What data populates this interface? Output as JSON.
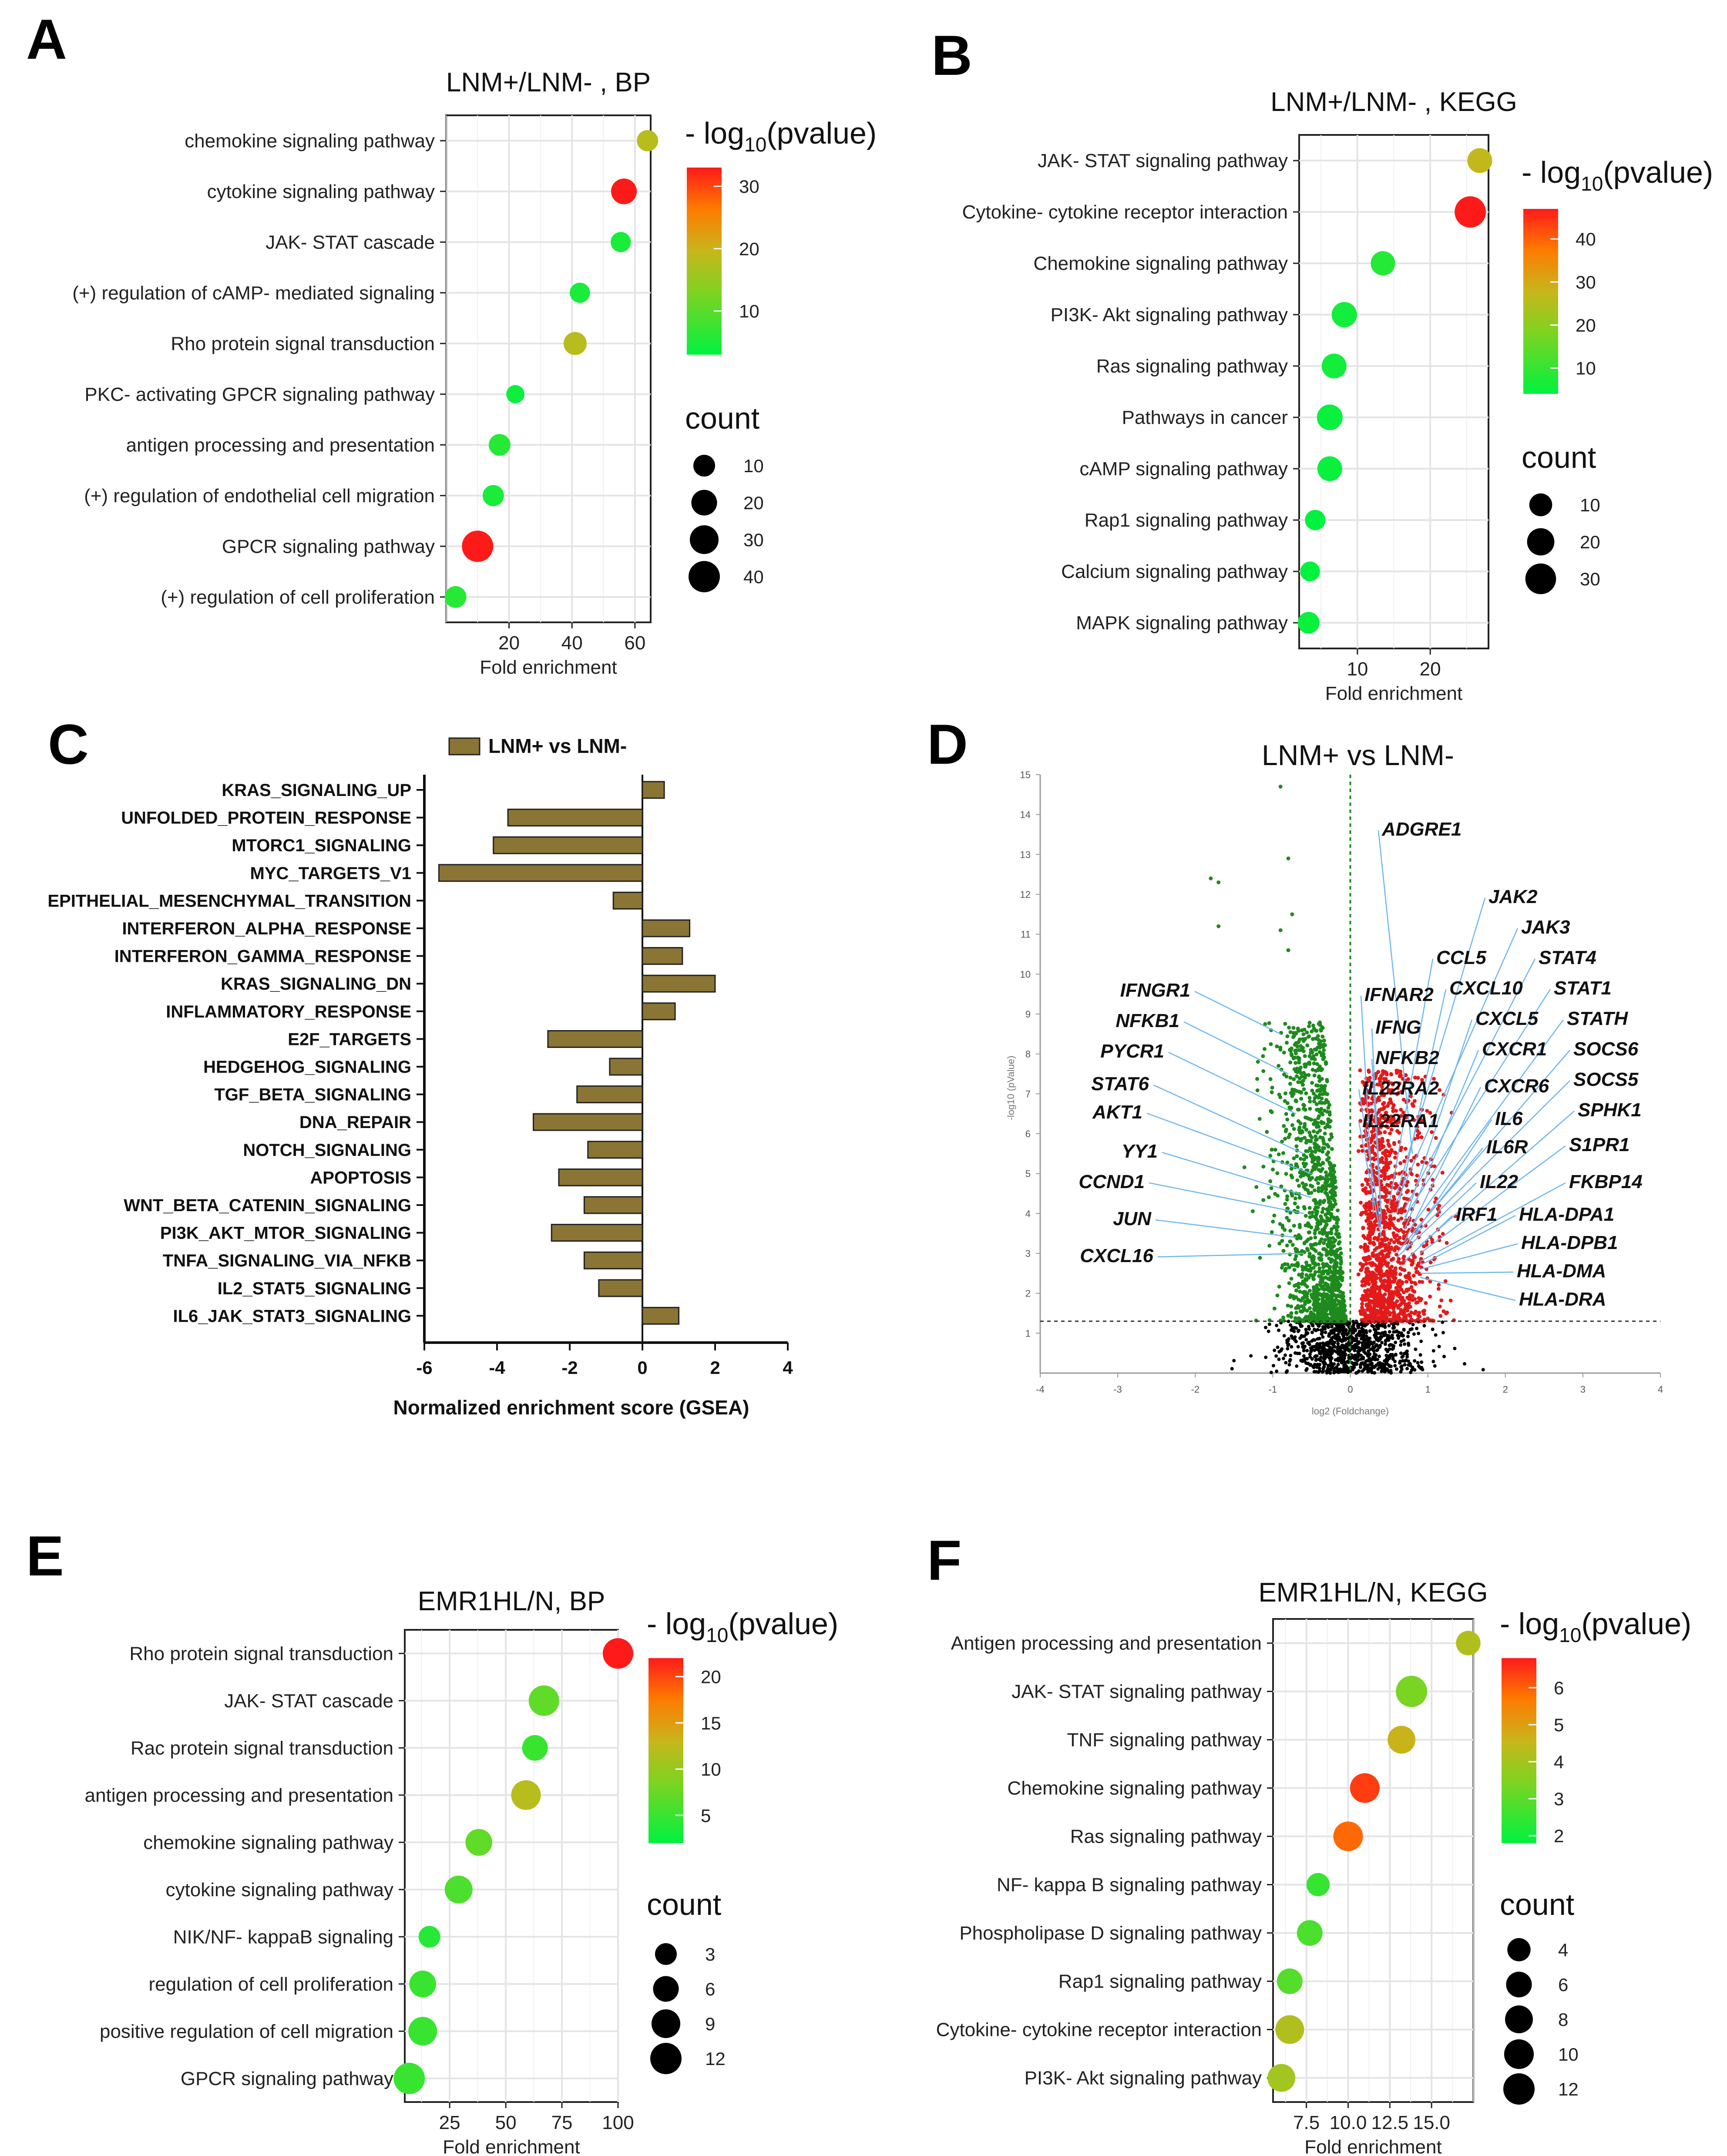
{
  "chart_data": [
    {
      "id": "A",
      "type": "scatter",
      "panel_label": "A",
      "title": "LNM+/LNM- , BP",
      "xlabel": "Fold enrichment",
      "ylabel": "",
      "xlim": [
        0,
        65
      ],
      "xticks": [
        20,
        40,
        60
      ],
      "grid": true,
      "terms": [
        "chemokine signaling pathway",
        "cytokine signaling pathway",
        "JAK- STAT cascade",
        "(+) regulation of cAMP- mediated signaling",
        "Rho protein signal transduction",
        "PKC- activating GPCR signaling pathway",
        "antigen processing and presentation",
        "(+) regulation of endothelial cell migration",
        "GPCR signaling pathway",
        "(+) regulation of cell proliferation"
      ],
      "fold_enrichment": [
        64,
        56.5,
        55.5,
        42.5,
        41,
        22,
        17,
        15,
        10,
        3
      ],
      "neg_log10_pvalue": [
        18,
        33,
        5,
        5,
        18,
        4,
        6,
        5,
        33,
        6
      ],
      "count": [
        9,
        20,
        7,
        7,
        13,
        4,
        10,
        9,
        40,
        10
      ],
      "color_legend": {
        "title_prefix": "- log",
        "title_sub": "10",
        "title_suffix": "(pvalue)",
        "ticks": [
          10,
          20,
          30
        ],
        "min": 3,
        "max": 33
      },
      "size_legend": {
        "title": "count",
        "ticks": [
          10,
          20,
          30,
          40
        ],
        "max_count": 40
      }
    },
    {
      "id": "B",
      "type": "scatter",
      "panel_label": "B",
      "title": "LNM+/LNM- , KEGG",
      "xlabel": "Fold enrichment",
      "ylabel": "",
      "xlim": [
        2,
        28
      ],
      "xticks": [
        10,
        20
      ],
      "grid": true,
      "terms": [
        "JAK- STAT signaling pathway",
        "Cytokine- cytokine receptor interaction",
        "Chemokine signaling pathway",
        "PI3K- Akt signaling pathway",
        "Ras signaling pathway",
        "Pathways in cancer",
        "cAMP signaling pathway",
        "Rap1 signaling pathway",
        "Calcium signaling pathway",
        "MAPK signaling pathway"
      ],
      "fold_enrichment": [
        26.8,
        25.5,
        13.5,
        8.2,
        6.8,
        6.2,
        6.2,
        4.2,
        3.5,
        3.3
      ],
      "neg_log10_pvalue": [
        27,
        47,
        8,
        6,
        6,
        5,
        5,
        4,
        4,
        5
      ],
      "count": [
        14,
        32,
        13,
        15,
        14,
        16,
        14,
        6,
        5,
        8
      ],
      "color_legend": {
        "title_prefix": "- log",
        "title_sub": "10",
        "title_suffix": "(pvalue)",
        "ticks": [
          10,
          20,
          30,
          40
        ],
        "min": 4,
        "max": 47
      },
      "size_legend": {
        "title": "count",
        "ticks": [
          10,
          20,
          30
        ],
        "max_count": 32
      }
    },
    {
      "id": "C",
      "type": "bar",
      "orientation": "horizontal",
      "panel_label": "C",
      "title": "",
      "legend": "LNM+ vs LNM-",
      "legend_color": "#8b7534",
      "xlabel": "Normalized enrichment score (GSEA)",
      "xlim": [
        -6,
        4
      ],
      "xticks": [
        -6,
        -4,
        -2,
        0,
        2,
        4
      ],
      "categories": [
        "KRAS_SIGNALING_UP",
        "UNFOLDED_PROTEIN_RESPONSE",
        "MTORC1_SIGNALING",
        "MYC_TARGETS_V1",
        "EPITHELIAL_MESENCHYMAL_TRANSITION",
        "INTERFERON_ALPHA_RESPONSE",
        "INTERFERON_GAMMA_RESPONSE",
        "KRAS_SIGNALING_DN",
        "INFLAMMATORY_RESPONSE",
        "E2F_TARGETS",
        "HEDGEHOG_SIGNALING",
        "TGF_BETA_SIGNALING",
        "DNA_REPAIR",
        "NOTCH_SIGNALING",
        "APOPTOSIS",
        "WNT_BETA_CATENIN_SIGNALING",
        "PI3K_AKT_MTOR_SIGNALING",
        "TNFA_SIGNALING_VIA_NFKB",
        "IL2_STAT5_SIGNALING",
        "IL6_JAK_STAT3_SIGNALING"
      ],
      "values": [
        0.6,
        -3.7,
        -4.1,
        -5.6,
        -0.8,
        1.3,
        1.1,
        2.0,
        0.9,
        -2.6,
        -0.9,
        -1.8,
        -3.0,
        -1.5,
        -2.3,
        -1.6,
        -2.5,
        -1.6,
        -1.2,
        1.0
      ]
    },
    {
      "id": "D",
      "type": "scatter",
      "subtype": "volcano",
      "panel_label": "D",
      "title": "LNM+ vs LNM-",
      "xlabel": "log2 (Foldchange)",
      "ylabel": "-log10 (pValue)",
      "xlim": [
        -4,
        4
      ],
      "ylim": [
        0,
        15
      ],
      "xticks": [
        -4,
        -3,
        -2,
        -1,
        0,
        1,
        2,
        3,
        4
      ],
      "yticks": [
        1,
        2,
        3,
        4,
        5,
        6,
        7,
        8,
        9,
        10,
        11,
        12,
        13,
        14,
        15
      ],
      "pvalue_threshold_line": 1.3,
      "fc_threshold_line": 0,
      "colors": {
        "down": "#1e8a1e",
        "up": "#e31a1a",
        "ns": "#000000",
        "label_line": "#6bb5f0"
      },
      "labeled_genes_down": [
        {
          "gene": "IFNGR1",
          "x": -0.9,
          "y": 8.5
        },
        {
          "gene": "NFKB1",
          "x": -0.8,
          "y": 7.5
        },
        {
          "gene": "PYCR1",
          "x": -0.7,
          "y": 6.5
        },
        {
          "gene": "STAT6",
          "x": -0.6,
          "y": 5.5
        },
        {
          "gene": "AKT1",
          "x": -0.5,
          "y": 5.0
        },
        {
          "gene": "YY1",
          "x": -0.5,
          "y": 4.4
        },
        {
          "gene": "CCND1",
          "x": -0.6,
          "y": 4.0
        },
        {
          "gene": "JUN",
          "x": -0.7,
          "y": 3.4
        },
        {
          "gene": "CXCL16",
          "x": -0.6,
          "y": 3.0
        }
      ],
      "labeled_genes_up": [
        {
          "gene": "ADGRE1",
          "x": 0.8,
          "y": 5.5
        },
        {
          "gene": "JAK2",
          "x": 0.6,
          "y": 4.5
        },
        {
          "gene": "JAK3",
          "x": 0.6,
          "y": 4.3
        },
        {
          "gene": "CCL5",
          "x": 0.5,
          "y": 4.2
        },
        {
          "gene": "STAT4",
          "x": 0.7,
          "y": 4.1
        },
        {
          "gene": "CXCL10",
          "x": 0.6,
          "y": 4.0
        },
        {
          "gene": "STAT1",
          "x": 0.7,
          "y": 3.9
        },
        {
          "gene": "IFNAR2",
          "x": 0.3,
          "y": 4.0
        },
        {
          "gene": "CXCL5",
          "x": 0.7,
          "y": 3.8
        },
        {
          "gene": "STATH",
          "x": 0.8,
          "y": 3.7
        },
        {
          "gene": "IFNG",
          "x": 0.4,
          "y": 3.9
        },
        {
          "gene": "CXCR1",
          "x": 0.7,
          "y": 3.6
        },
        {
          "gene": "SOCS6",
          "x": 0.8,
          "y": 3.5
        },
        {
          "gene": "NFKB2",
          "x": 0.4,
          "y": 3.8
        },
        {
          "gene": "SOCS5",
          "x": 0.8,
          "y": 3.4
        },
        {
          "gene": "CXCR6",
          "x": 0.7,
          "y": 3.3
        },
        {
          "gene": "IL22RA2",
          "x": 0.4,
          "y": 3.6
        },
        {
          "gene": "SPHK1",
          "x": 0.9,
          "y": 3.2
        },
        {
          "gene": "IL6",
          "x": 0.7,
          "y": 3.1
        },
        {
          "gene": "IL22RA1",
          "x": 0.4,
          "y": 3.4
        },
        {
          "gene": "S1PR1",
          "x": 0.9,
          "y": 3.0
        },
        {
          "gene": "IL6R",
          "x": 0.6,
          "y": 3.0
        },
        {
          "gene": "IL22",
          "x": 0.6,
          "y": 2.9
        },
        {
          "gene": "FKBP14",
          "x": 0.9,
          "y": 2.8
        },
        {
          "gene": "IRF1",
          "x": 0.7,
          "y": 2.8
        },
        {
          "gene": "HLA-DPA1",
          "x": 0.9,
          "y": 2.7
        },
        {
          "gene": "HLA-DPB1",
          "x": 0.9,
          "y": 2.6
        },
        {
          "gene": "HLA-DMA",
          "x": 0.9,
          "y": 2.5
        },
        {
          "gene": "HLA-DRA",
          "x": 0.9,
          "y": 2.4
        }
      ]
    },
    {
      "id": "E",
      "type": "scatter",
      "panel_label": "E",
      "title": "EMR1HL/N, BP",
      "xlabel": "Fold enrichment",
      "ylabel": "",
      "xlim": [
        5,
        100
      ],
      "xticks": [
        25,
        50,
        75,
        100
      ],
      "grid": true,
      "terms": [
        "Rho protein signal transduction",
        "JAK- STAT cascade",
        "Rac protein signal transduction",
        "antigen processing and presentation",
        "chemokine signaling pathway",
        "cytokine signaling pathway",
        "NIK/NF- kappaB signaling",
        "regulation of cell proliferation",
        "positive regulation of cell migration",
        "GPCR signaling pathway"
      ],
      "fold_enrichment": [
        100,
        67,
        63,
        59,
        38,
        29,
        16,
        13,
        13,
        7
      ],
      "neg_log10_pvalue": [
        22,
        7,
        5,
        12,
        7,
        6,
        4,
        5,
        5,
        5
      ],
      "count": [
        11,
        11,
        6,
        10,
        7,
        8,
        3,
        7,
        9,
        12
      ],
      "color_legend": {
        "title_prefix": "- log",
        "title_sub": "10",
        "title_suffix": "(pvalue)",
        "ticks": [
          5,
          10,
          15,
          20
        ],
        "min": 2,
        "max": 22
      },
      "size_legend": {
        "title": "count",
        "ticks": [
          3,
          6,
          9,
          12
        ],
        "max_count": 12
      }
    },
    {
      "id": "F",
      "type": "scatter",
      "panel_label": "F",
      "title": "EMR1HL/N, KEGG",
      "xlabel": "Fold enrichment",
      "ylabel": "",
      "xlim": [
        5.5,
        17.5
      ],
      "xticks": [
        7.5,
        10.0,
        12.5,
        15.0
      ],
      "xtick_labels": [
        "7.5",
        "10.0",
        "12.5",
        "15.0"
      ],
      "grid": true,
      "terms": [
        "Antigen processing and presentation",
        "JAK- STAT signaling pathway",
        "TNF signaling pathway",
        "Chemokine signaling pathway",
        "Ras signaling pathway",
        "NF- kappa B signaling pathway",
        "Phospholipase D signaling pathway",
        "Rap1 signaling pathway",
        "Cytokine- cytokine receptor interaction",
        "PI3K- Akt signaling pathway"
      ],
      "fold_enrichment": [
        17.2,
        13.8,
        13.2,
        11.0,
        10.0,
        8.2,
        7.7,
        6.5,
        6.5,
        6.0
      ],
      "neg_log10_pvalue": [
        4.2,
        3.4,
        4.6,
        6.4,
        5.9,
        2.5,
        2.8,
        2.9,
        4.2,
        4.0
      ],
      "count": [
        5,
        12,
        8,
        10,
        10,
        4,
        6,
        6,
        9,
        8
      ],
      "color_legend": {
        "title_prefix": "- log",
        "title_sub": "10",
        "title_suffix": "(pvalue)",
        "ticks": [
          2,
          3,
          4,
          5,
          6
        ],
        "min": 1.8,
        "max": 6.8
      },
      "size_legend": {
        "title": "count",
        "ticks": [
          4,
          6,
          8,
          10,
          12
        ],
        "max_count": 12
      }
    }
  ]
}
